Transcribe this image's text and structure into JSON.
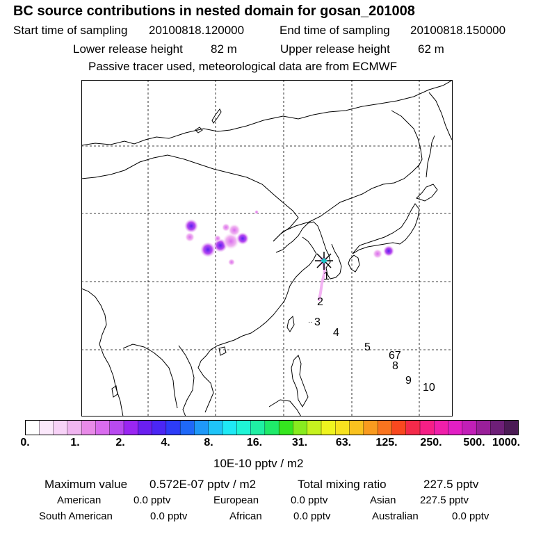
{
  "header": {
    "title": "BC  source contributions in nested domain for gosan_201008",
    "start_label": "Start time of sampling",
    "start_value": "20100818.120000",
    "end_label": "End time of sampling",
    "end_value": "20100818.150000",
    "lower_label": "Lower release height",
    "lower_value": "82 m",
    "upper_label": "Upper release height",
    "upper_value": "62 m",
    "tracer_note": "Passive tracer used, meteorological data are from ECMWF"
  },
  "map": {
    "trajectory_labels": [
      "1",
      "2",
      "3",
      "4",
      "5",
      "67",
      "8",
      "9",
      "10"
    ]
  },
  "colorbar": {
    "colors": [
      "#ffffff",
      "#fbe8fb",
      "#f7d2f7",
      "#f0b5f0",
      "#e88ae8",
      "#d96cee",
      "#b84af0",
      "#9a26f2",
      "#6a1ff0",
      "#4b26f4",
      "#2d3cf8",
      "#1f68f8",
      "#1f98f8",
      "#1fc4f8",
      "#1fe9f5",
      "#1ff5d6",
      "#1fefa3",
      "#1fea6a",
      "#35e61f",
      "#88ec1f",
      "#c6f21f",
      "#eff41f",
      "#f7e21f",
      "#f9c21f",
      "#f99b1f",
      "#f9741f",
      "#f9481f",
      "#f42a4a",
      "#f51f86",
      "#f01faa",
      "#e21fc4",
      "#c21fb8",
      "#9a1f9a",
      "#6e1f78",
      "#4b1b55"
    ],
    "tick_labels": [
      "0.",
      "1.",
      "2.",
      "4.",
      "8.",
      "16.",
      "31.",
      "63.",
      "125.",
      "250.",
      "500.",
      "1000."
    ],
    "unit": "10E-10 pptv / m2"
  },
  "summary": {
    "max_label": "Maximum value",
    "max_value": "0.572E-07 pptv / m2",
    "total_label": "Total mixing ratio",
    "total_value": "227.5 pptv",
    "american_label": "American",
    "american_value": "0.0 pptv",
    "european_label": "European",
    "european_value": "0.0 pptv",
    "asian_label": "Asian",
    "asian_value": "227.5 pptv",
    "south_american_label": "South American",
    "south_american_value": "0.0 pptv",
    "african_label": "African",
    "african_value": "0.0 pptv",
    "australian_label": "Australian",
    "australian_value": "0.0 pptv"
  },
  "colors": {
    "grid": "#000000",
    "source_high": "#5a1ff0",
    "source_low": "#e89ae8",
    "trajectory": "#f0a0f0"
  }
}
